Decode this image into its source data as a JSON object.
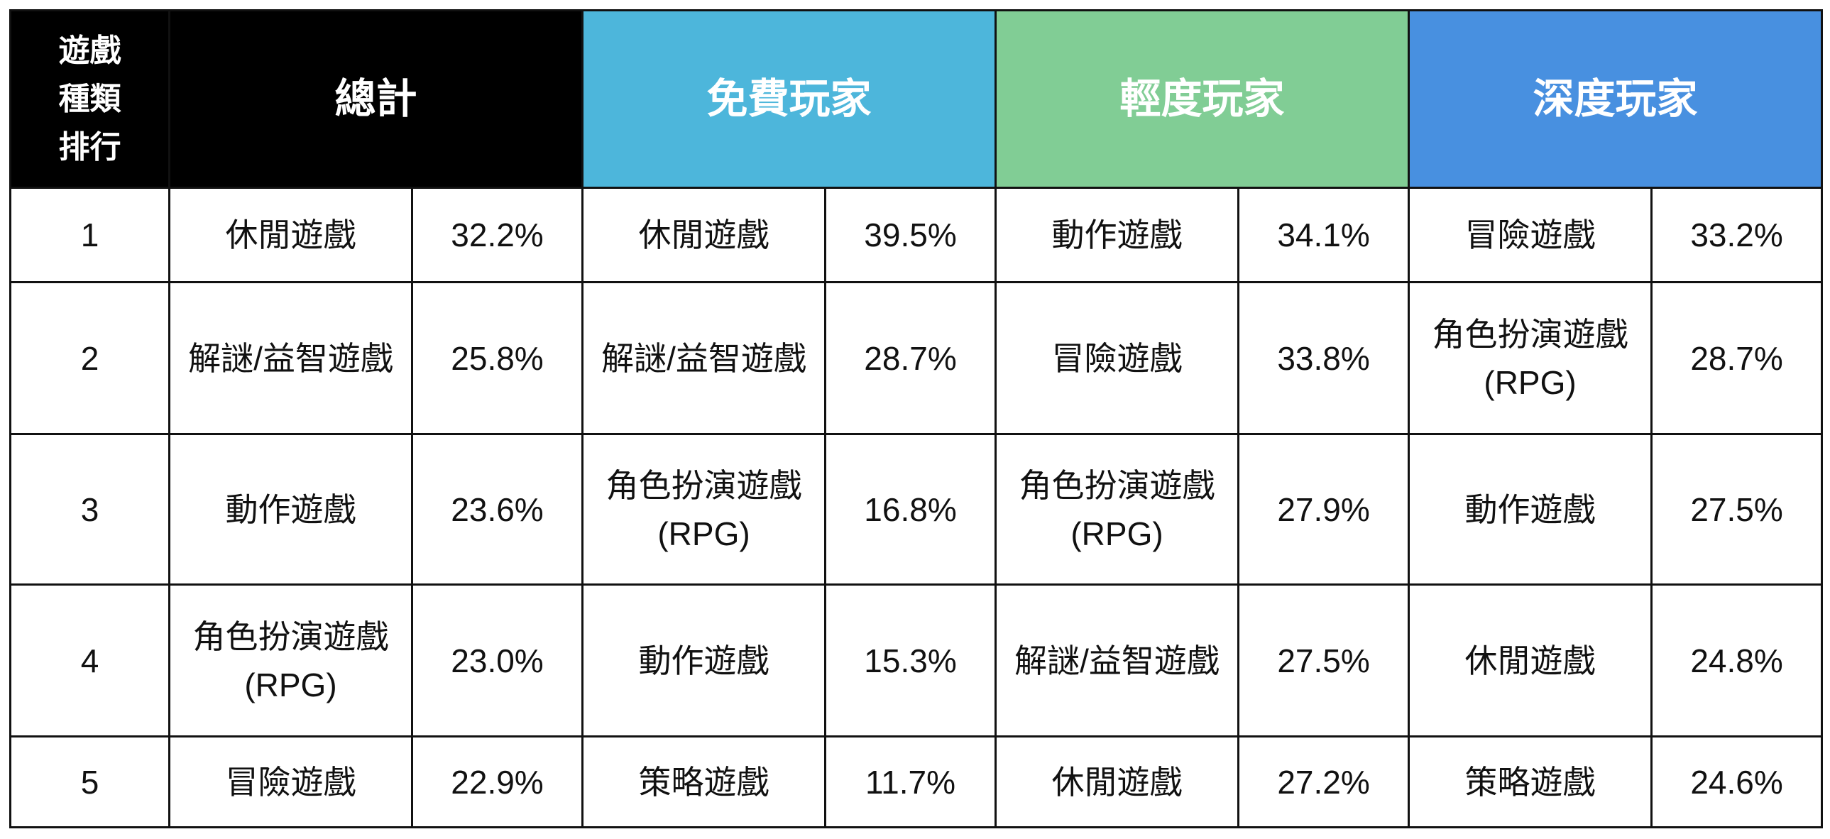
{
  "header": {
    "rank_label": [
      "遊戲",
      "種類",
      "排行"
    ],
    "groups": [
      {
        "title": "總計",
        "color": "#000000"
      },
      {
        "title": "免費玩家",
        "color": "#4db6db"
      },
      {
        "title": "輕度玩家",
        "color": "#81cd95"
      },
      {
        "title": "深度玩家",
        "color": "#4890e0"
      }
    ]
  },
  "table": {
    "rows": [
      [
        "1",
        "休閒遊戲",
        "32.2%",
        "休閒遊戲",
        "39.5%",
        "動作遊戲",
        "34.1%",
        "冒險遊戲",
        "33.2%"
      ],
      [
        "2",
        "解謎/益智遊戲",
        "25.8%",
        "解謎/益智遊戲",
        "28.7%",
        "冒險遊戲",
        "33.8%",
        "角色扮演遊戲 (RPG)",
        "28.7%"
      ],
      [
        "3",
        "動作遊戲",
        "23.6%",
        "角色扮演遊戲 (RPG)",
        "16.8%",
        "角色扮演遊戲 (RPG)",
        "27.9%",
        "動作遊戲",
        "27.5%"
      ],
      [
        "4",
        "角色扮演遊戲 (RPG)",
        "23.0%",
        "動作遊戲",
        "15.3%",
        "解謎/益智遊戲",
        "27.5%",
        "休閒遊戲",
        "24.8%"
      ],
      [
        "5",
        "冒險遊戲",
        "22.9%",
        "策略遊戲",
        "11.7%",
        "休閒遊戲",
        "27.2%",
        "策略遊戲",
        "24.6%"
      ]
    ]
  }
}
